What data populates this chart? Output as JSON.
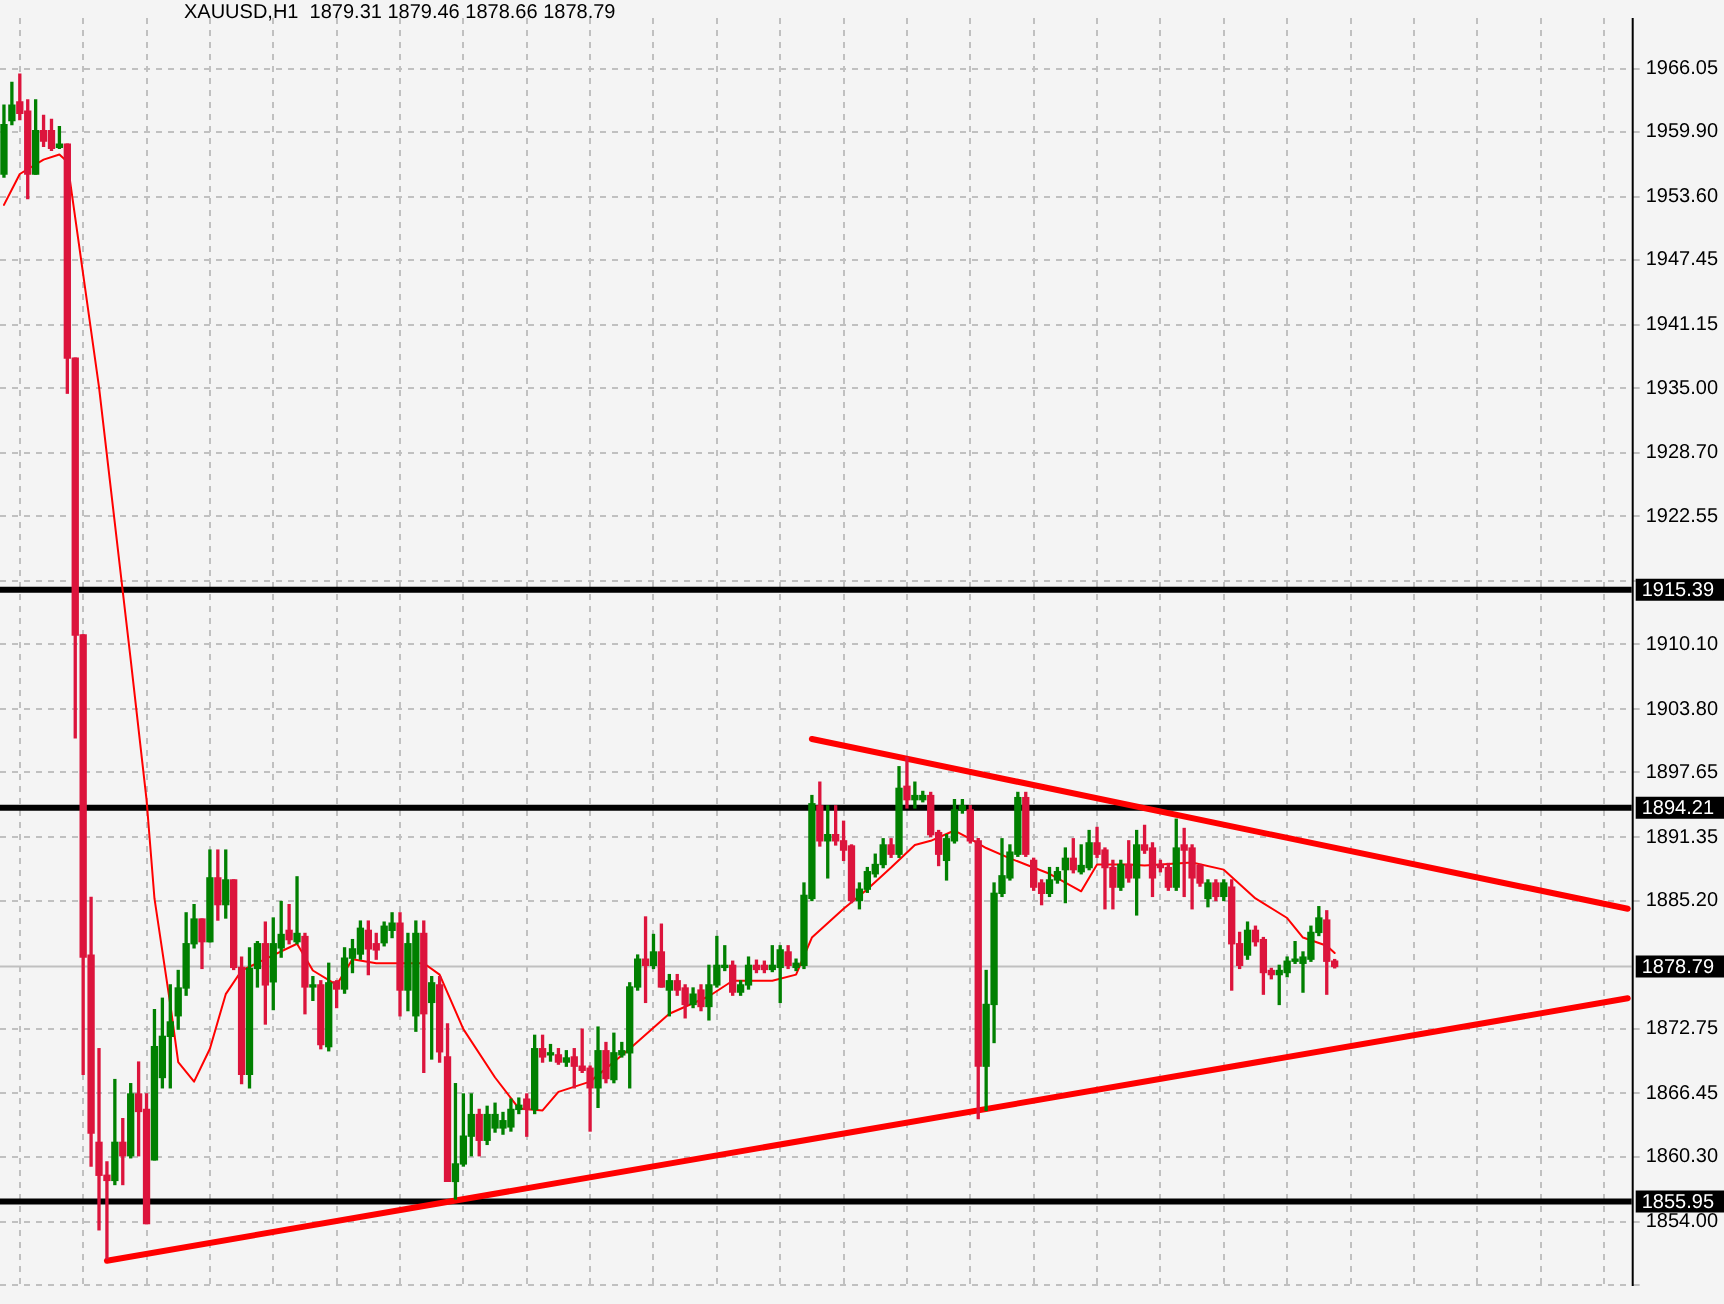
{
  "chart_data": {
    "type": "candlestick",
    "title": "XAUUSD,H1  1879.31 1879.46 1878.66 1878.79",
    "categories": [
      null,
      null,
      null,
      null,
      null,
      null,
      null,
      null,
      null,
      null,
      null,
      null,
      null,
      null,
      null,
      null,
      null,
      null,
      null,
      null,
      null,
      null,
      null,
      null,
      null,
      null,
      null,
      null,
      null,
      null,
      null,
      null,
      null,
      null,
      null,
      null,
      null,
      null,
      null,
      null,
      null,
      null,
      null,
      null,
      null,
      null,
      null,
      null,
      null,
      null,
      null,
      null,
      null,
      null,
      null,
      null,
      null,
      null,
      null,
      null,
      null,
      null,
      null,
      null,
      null,
      null,
      null,
      null,
      null,
      null,
      null,
      null,
      null,
      null,
      null,
      null,
      null,
      null,
      null,
      null,
      null,
      null,
      null,
      null,
      null,
      null,
      null,
      null,
      null,
      null,
      null,
      null,
      null,
      null,
      null,
      null,
      null,
      null,
      null,
      null,
      null,
      null,
      null,
      null,
      null,
      null,
      null,
      null,
      null,
      null,
      null,
      null,
      null,
      null,
      null,
      null,
      null,
      null,
      null,
      null,
      null,
      null,
      null,
      null,
      null,
      null,
      null,
      null,
      null,
      null,
      null,
      null,
      null,
      null,
      null,
      null,
      null,
      null,
      null,
      null,
      null,
      null,
      null,
      null,
      null,
      null,
      null,
      null,
      null,
      null,
      null,
      null,
      null,
      null,
      null,
      null,
      null,
      null,
      null,
      null,
      null,
      null,
      null,
      null,
      null,
      null,
      null,
      null,
      null,
      null,
      null,
      null,
      null,
      null,
      null,
      null,
      null,
      null,
      null,
      null,
      null,
      null,
      null,
      null,
      null,
      null,
      null,
      null,
      null,
      null,
      null,
      null,
      null,
      null,
      null,
      null,
      null,
      null,
      null,
      null,
      null,
      null,
      null,
      null,
      null,
      null
    ],
    "ohlc": [
      [
        1955.8,
        1962.5,
        1955.5,
        1960.6
      ],
      [
        1961.0,
        1964.7,
        1960.6,
        1962.5
      ],
      [
        1962.8,
        1965.5,
        1961.1,
        1961.7
      ],
      [
        1961.9,
        1963.0,
        1953.4,
        1955.8
      ],
      [
        1955.8,
        1963.0,
        1955.8,
        1960.0
      ],
      [
        1960.0,
        1961.5,
        1958.5,
        1959.0
      ],
      [
        1960.0,
        1961.1,
        1958.1,
        1958.3
      ],
      [
        1958.4,
        1960.4,
        1958.3,
        1958.7
      ],
      [
        1958.7,
        1958.7,
        1934.5,
        1937.9
      ],
      [
        1937.9,
        1937.9,
        1901.0,
        1911.0
      ],
      [
        1911.0,
        1911.0,
        1868.3,
        1879.7
      ],
      [
        1879.9,
        1885.5,
        1859.4,
        1862.6
      ],
      [
        1861.7,
        1870.8,
        1853.2,
        1858.5
      ],
      [
        1858.5,
        1859.8,
        1850.4,
        1858.0
      ],
      [
        1858.0,
        1867.8,
        1857.6,
        1861.7
      ],
      [
        1861.7,
        1864.0,
        1857.6,
        1860.4
      ],
      [
        1860.4,
        1867.4,
        1860.2,
        1866.4
      ],
      [
        1866.4,
        1869.5,
        1860.4,
        1864.7
      ],
      [
        1864.9,
        1866.4,
        1853.8,
        1853.8
      ],
      [
        1860.0,
        1874.6,
        1860.0,
        1871.0
      ],
      [
        1868.0,
        1875.7,
        1867.0,
        1872.0
      ],
      [
        1872.0,
        1877.0,
        1867.0,
        1873.4
      ],
      [
        1874.0,
        1878.4,
        1872.7,
        1876.7
      ],
      [
        1876.7,
        1884.0,
        1876.0,
        1881.0
      ],
      [
        1881.0,
        1884.8,
        1880.6,
        1883.4
      ],
      [
        1883.4,
        1883.4,
        1878.6,
        1881.2
      ],
      [
        1881.2,
        1890.1,
        1881.2,
        1887.4
      ],
      [
        1887.4,
        1890.1,
        1883.3,
        1884.8
      ],
      [
        1884.8,
        1890.1,
        1883.5,
        1887.2
      ],
      [
        1887.2,
        1887.2,
        1878.5,
        1878.7
      ],
      [
        1878.7,
        1879.7,
        1867.4,
        1868.3
      ],
      [
        1868.3,
        1880.6,
        1867.0,
        1878.6
      ],
      [
        1878.6,
        1881.2,
        1876.8,
        1881.0
      ],
      [
        1881.0,
        1883.1,
        1873.2,
        1877.0
      ],
      [
        1877.3,
        1883.5,
        1874.6,
        1881.0
      ],
      [
        1880.6,
        1885.1,
        1879.7,
        1881.9
      ],
      [
        1882.3,
        1884.8,
        1881.0,
        1881.4
      ],
      [
        1881.2,
        1887.5,
        1881.0,
        1882.0
      ],
      [
        1881.7,
        1882.0,
        1874.2,
        1876.8
      ],
      [
        1876.8,
        1877.8,
        1875.5,
        1877.0
      ],
      [
        1877.0,
        1877.4,
        1870.8,
        1871.2
      ],
      [
        1871.0,
        1879.1,
        1870.6,
        1877.2
      ],
      [
        1877.3,
        1877.4,
        1874.8,
        1876.6
      ],
      [
        1876.6,
        1880.6,
        1876.2,
        1879.6
      ],
      [
        1879.6,
        1881.4,
        1878.2,
        1880.5
      ],
      [
        1880.0,
        1883.2,
        1879.5,
        1882.5
      ],
      [
        1882.3,
        1883.2,
        1878.0,
        1880.5
      ],
      [
        1881.0,
        1882.0,
        1879.5,
        1880.4
      ],
      [
        1881.1,
        1883.1,
        1880.8,
        1882.7
      ],
      [
        1882.3,
        1884.0,
        1881.6,
        1883.0
      ],
      [
        1883.0,
        1884.0,
        1874.0,
        1876.5
      ],
      [
        1876.5,
        1882.0,
        1874.5,
        1881.0
      ],
      [
        1874.0,
        1883.2,
        1872.5,
        1882.0
      ],
      [
        1882.0,
        1883.2,
        1868.5,
        1874.2
      ],
      [
        1875.3,
        1877.8,
        1869.8,
        1877.2
      ],
      [
        1877.0,
        1877.8,
        1869.5,
        1870.5
      ],
      [
        1870.0,
        1873.2,
        1857.9,
        1857.9
      ],
      [
        1857.9,
        1867.4,
        1856.2,
        1859.6
      ],
      [
        1859.6,
        1866.4,
        1859.4,
        1862.3
      ],
      [
        1862.3,
        1866.4,
        1860.4,
        1864.4
      ],
      [
        1864.4,
        1864.9,
        1860.4,
        1861.9
      ],
      [
        1861.9,
        1865.2,
        1861.5,
        1864.4
      ],
      [
        1863.1,
        1865.5,
        1862.7,
        1864.4
      ],
      [
        1863.1,
        1864.6,
        1862.5,
        1863.8
      ],
      [
        1863.2,
        1865.9,
        1862.8,
        1864.9
      ],
      [
        1864.9,
        1866.0,
        1864.5,
        1865.3
      ],
      [
        1865.9,
        1866.4,
        1862.3,
        1864.9
      ],
      [
        1864.9,
        1872.1,
        1864.5,
        1870.8
      ],
      [
        1870.8,
        1872.1,
        1869.5,
        1870.0
      ],
      [
        1870.2,
        1871.2,
        1869.6,
        1870.4
      ],
      [
        1870.2,
        1870.8,
        1869.3,
        1869.5
      ],
      [
        1869.5,
        1870.6,
        1869.1,
        1869.9
      ],
      [
        1870.0,
        1870.8,
        1867.0,
        1869.1
      ],
      [
        1869.1,
        1872.7,
        1868.5,
        1868.7
      ],
      [
        1868.9,
        1869.1,
        1862.8,
        1867.0
      ],
      [
        1867.0,
        1872.9,
        1865.1,
        1870.6
      ],
      [
        1870.6,
        1871.4,
        1867.5,
        1867.9
      ],
      [
        1867.8,
        1872.3,
        1867.5,
        1870.4
      ],
      [
        1870.2,
        1871.4,
        1870.0,
        1870.6
      ],
      [
        1870.4,
        1877.2,
        1867.0,
        1876.8
      ],
      [
        1876.8,
        1879.9,
        1876.5,
        1879.5
      ],
      [
        1879.5,
        1883.6,
        1875.3,
        1878.9
      ],
      [
        1878.9,
        1881.9,
        1878.6,
        1880.2
      ],
      [
        1880.2,
        1882.9,
        1876.8,
        1876.8
      ],
      [
        1876.5,
        1878.0,
        1874.0,
        1877.4
      ],
      [
        1877.4,
        1878.0,
        1876.0,
        1876.5
      ],
      [
        1876.7,
        1877.0,
        1873.8,
        1875.1
      ],
      [
        1875.1,
        1876.7,
        1874.8,
        1876.1
      ],
      [
        1876.5,
        1877.0,
        1874.5,
        1874.9
      ],
      [
        1874.9,
        1878.9,
        1873.6,
        1877.0
      ],
      [
        1877.0,
        1881.7,
        1876.8,
        1878.9
      ],
      [
        1878.7,
        1880.8,
        1878.4,
        1878.9
      ],
      [
        1878.9,
        1879.3,
        1876.0,
        1876.3
      ],
      [
        1876.3,
        1877.4,
        1876.0,
        1877.0
      ],
      [
        1877.0,
        1879.7,
        1876.6,
        1878.9
      ],
      [
        1878.9,
        1879.4,
        1878.2,
        1878.5
      ],
      [
        1878.9,
        1879.3,
        1878.2,
        1878.5
      ],
      [
        1878.5,
        1880.8,
        1878.3,
        1878.9
      ],
      [
        1878.7,
        1880.8,
        1875.3,
        1880.4
      ],
      [
        1880.2,
        1880.8,
        1878.6,
        1878.9
      ],
      [
        1878.7,
        1879.5,
        1878.4,
        1879.1
      ],
      [
        1878.9,
        1886.9,
        1878.6,
        1885.7
      ],
      [
        1885.4,
        1895.4,
        1885.2,
        1894.6
      ],
      [
        1894.4,
        1896.7,
        1890.5,
        1891.0
      ],
      [
        1891.0,
        1894.4,
        1887.4,
        1891.6
      ],
      [
        1891.6,
        1894.4,
        1890.6,
        1891.0
      ],
      [
        1891.0,
        1892.9,
        1889.1,
        1890.1
      ],
      [
        1890.5,
        1890.6,
        1885.0,
        1885.2
      ],
      [
        1885.2,
        1886.9,
        1884.4,
        1886.3
      ],
      [
        1886.3,
        1888.4,
        1886.0,
        1888.0
      ],
      [
        1887.8,
        1889.7,
        1887.5,
        1888.7
      ],
      [
        1888.7,
        1891.2,
        1888.4,
        1890.6
      ],
      [
        1890.6,
        1891.2,
        1889.4,
        1889.7
      ],
      [
        1889.7,
        1898.2,
        1889.4,
        1896.1
      ],
      [
        1896.3,
        1899.1,
        1894.2,
        1895.0
      ],
      [
        1895.0,
        1896.7,
        1894.2,
        1895.4
      ],
      [
        1895.0,
        1895.8,
        1894.8,
        1895.4
      ],
      [
        1895.4,
        1895.7,
        1891.4,
        1891.6
      ],
      [
        1891.8,
        1892.0,
        1888.6,
        1889.7
      ],
      [
        1889.1,
        1891.6,
        1887.2,
        1891.2
      ],
      [
        1891.0,
        1895.0,
        1890.8,
        1894.0
      ],
      [
        1894.0,
        1895.0,
        1893.7,
        1894.4
      ],
      [
        1894.0,
        1894.4,
        1890.8,
        1891.0
      ],
      [
        1891.0,
        1891.2,
        1864.0,
        1869.1
      ],
      [
        1869.1,
        1878.4,
        1864.8,
        1875.1
      ],
      [
        1875.1,
        1886.9,
        1871.4,
        1885.9
      ],
      [
        1885.9,
        1891.2,
        1885.6,
        1887.6
      ],
      [
        1887.4,
        1890.6,
        1887.2,
        1889.9
      ],
      [
        1889.7,
        1895.7,
        1889.5,
        1895.2
      ],
      [
        1895.2,
        1895.7,
        1889.5,
        1889.7
      ],
      [
        1889.1,
        1889.3,
        1886.2,
        1886.5
      ],
      [
        1886.9,
        1887.2,
        1884.8,
        1885.9
      ],
      [
        1885.9,
        1888.4,
        1885.6,
        1887.2
      ],
      [
        1887.2,
        1888.4,
        1886.9,
        1888.0
      ],
      [
        1888.2,
        1890.3,
        1885.0,
        1889.3
      ],
      [
        1889.3,
        1891.2,
        1887.9,
        1888.2
      ],
      [
        1888.0,
        1890.6,
        1887.8,
        1888.6
      ],
      [
        1888.4,
        1892.0,
        1888.2,
        1890.8
      ],
      [
        1890.8,
        1892.3,
        1889.4,
        1889.7
      ],
      [
        1890.1,
        1890.3,
        1884.4,
        1888.4
      ],
      [
        1888.4,
        1889.1,
        1884.4,
        1886.5
      ],
      [
        1886.5,
        1889.1,
        1886.2,
        1888.7
      ],
      [
        1888.7,
        1891.0,
        1887.0,
        1887.4
      ],
      [
        1887.4,
        1892.0,
        1883.8,
        1890.6
      ],
      [
        1890.6,
        1892.5,
        1889.8,
        1890.1
      ],
      [
        1890.3,
        1890.8,
        1885.6,
        1887.4
      ],
      [
        1888.7,
        1889.1,
        1888.0,
        1888.4
      ],
      [
        1888.4,
        1888.8,
        1886.2,
        1886.5
      ],
      [
        1886.5,
        1893.1,
        1886.2,
        1890.3
      ],
      [
        1890.6,
        1892.2,
        1885.6,
        1890.1
      ],
      [
        1890.3,
        1890.6,
        1884.4,
        1887.4
      ],
      [
        1888.6,
        1888.7,
        1886.6,
        1886.9
      ],
      [
        1885.4,
        1887.2,
        1884.6,
        1886.9
      ],
      [
        1886.9,
        1887.2,
        1885.2,
        1885.6
      ],
      [
        1885.6,
        1887.2,
        1885.2,
        1886.9
      ],
      [
        1886.5,
        1887.2,
        1876.5,
        1881.0
      ],
      [
        1881.0,
        1882.1,
        1878.6,
        1878.9
      ],
      [
        1879.9,
        1883.1,
        1879.5,
        1882.3
      ],
      [
        1882.3,
        1882.7,
        1880.8,
        1881.2
      ],
      [
        1881.4,
        1881.6,
        1876.1,
        1878.2
      ],
      [
        1878.4,
        1878.6,
        1877.6,
        1878.0
      ],
      [
        1878.0,
        1878.9,
        1875.1,
        1878.4
      ],
      [
        1878.2,
        1879.7,
        1877.8,
        1879.3
      ],
      [
        1879.3,
        1881.2,
        1879.1,
        1879.5
      ],
      [
        1879.1,
        1880.2,
        1876.3,
        1879.7
      ],
      [
        1879.5,
        1882.7,
        1879.3,
        1882.1
      ],
      [
        1882.1,
        1884.6,
        1881.8,
        1883.5
      ],
      [
        1883.3,
        1884.2,
        1876.1,
        1879.3
      ],
      [
        1879.31,
        1879.46,
        1878.66,
        1878.79
      ],
      null,
      null,
      null,
      null,
      null,
      null,
      null,
      null,
      null,
      null,
      null,
      null,
      null,
      null,
      null,
      null,
      null,
      null,
      null,
      null,
      null,
      null,
      null,
      null,
      null,
      null,
      null,
      null,
      null,
      null,
      null,
      null,
      null,
      null,
      null,
      null,
      null
    ],
    "colors": [
      "#008000",
      "#008000",
      "#dc143c",
      "#dc143c",
      "#008000",
      "#dc143c",
      "#dc143c",
      "#008000",
      "#dc143c",
      "#dc143c",
      "#dc143c",
      "#dc143c",
      "#dc143c",
      "#dc143c",
      "#008000",
      "#dc143c",
      "#008000",
      "#dc143c",
      "#dc143c",
      "#008000",
      "#008000",
      "#008000",
      "#008000",
      "#008000",
      "#008000",
      "#dc143c",
      "#008000",
      "#dc143c",
      "#008000",
      "#dc143c",
      "#dc143c",
      "#008000",
      "#008000",
      "#dc143c",
      "#008000",
      "#008000",
      "#dc143c",
      "#008000",
      "#dc143c",
      "#008000",
      "#dc143c",
      "#008000",
      "#dc143c",
      "#008000",
      "#008000",
      "#008000",
      "#dc143c",
      "#dc143c",
      "#008000",
      "#008000",
      "#dc143c",
      "#008000",
      "#008000",
      "#dc143c",
      "#008000",
      "#dc143c",
      "#dc143c",
      "#008000",
      "#008000",
      "#008000",
      "#dc143c",
      "#008000",
      "#008000",
      "#008000",
      "#008000",
      "#008000",
      "#dc143c",
      "#008000",
      "#dc143c",
      "#008000",
      "#dc143c",
      "#008000",
      "#dc143c",
      "#dc143c",
      "#dc143c",
      "#008000",
      "#dc143c",
      "#008000",
      "#008000",
      "#008000",
      "#008000",
      "#dc143c",
      "#008000",
      "#dc143c",
      "#008000",
      "#dc143c",
      "#dc143c",
      "#008000",
      "#dc143c",
      "#008000",
      "#008000",
      "#008000",
      "#dc143c",
      "#008000",
      "#008000",
      "#dc143c",
      "#dc143c",
      "#008000",
      "#008000",
      "#dc143c",
      "#008000",
      "#008000",
      "#008000",
      "#dc143c",
      "#008000",
      "#dc143c",
      "#dc143c",
      "#dc143c",
      "#008000",
      "#008000",
      "#008000",
      "#008000",
      "#dc143c",
      "#008000",
      "#dc143c",
      "#008000",
      "#008000",
      "#dc143c",
      "#dc143c",
      "#008000",
      "#008000",
      "#008000",
      "#dc143c",
      "#dc143c",
      "#008000",
      "#008000",
      "#008000",
      "#008000",
      "#008000",
      "#dc143c",
      "#dc143c",
      "#dc143c",
      "#008000",
      "#008000",
      "#008000",
      "#dc143c",
      "#008000",
      "#008000",
      "#dc143c",
      "#dc143c",
      "#dc143c",
      "#008000",
      "#dc143c",
      "#008000",
      "#dc143c",
      "#dc143c",
      "#dc143c",
      "#dc143c",
      "#008000",
      "#dc143c",
      "#dc143c",
      "#dc143c",
      "#008000",
      "#dc143c",
      "#008000",
      "#dc143c",
      "#dc143c",
      "#008000",
      "#dc143c",
      "#dc143c",
      "#dc143c",
      "#008000",
      "#008000",
      "#008000",
      "#008000",
      "#008000",
      "#008000",
      "#dc143c",
      "#dc143c",
      null,
      null,
      null,
      null,
      null,
      null,
      null,
      null,
      null,
      null,
      null,
      null,
      null,
      null,
      null,
      null,
      null,
      null,
      null,
      null,
      null,
      null,
      null,
      null,
      null,
      null,
      null,
      null,
      null,
      null,
      null,
      null,
      null,
      null,
      null,
      null,
      null
    ],
    "series": [
      {
        "type": "line",
        "color": "#ff0000",
        "values": [
          1952.8,
          null,
          1955.8,
          null,
          null,
          1957.2,
          null,
          1957.7,
          1957.0,
          null,
          null,
          null,
          1935.1,
          null,
          null,
          null,
          1908.6,
          null,
          1895.0,
          1885.4,
          null,
          1875.1,
          1869.5,
          null,
          1867.6,
          null,
          1870.8,
          null,
          1876.1,
          null,
          1878.4,
          null,
          null,
          null,
          null,
          null,
          null,
          1881.0,
          null,
          1878.4,
          null,
          null,
          1877.0,
          null,
          1879.5,
          null,
          null,
          1879.1,
          null,
          null,
          null,
          null,
          null,
          1879.1,
          null,
          1878.0,
          null,
          null,
          1872.7,
          null,
          null,
          null,
          1868.0,
          null,
          null,
          1865.0,
          null,
          null,
          1864.8,
          null,
          1866.6,
          null,
          null,
          null,
          1867.6,
          null,
          null,
          null,
          null,
          1870.8,
          null,
          null,
          null,
          null,
          1874.2,
          null,
          null,
          null,
          null,
          1875.9,
          null,
          null,
          1877.4,
          null,
          null,
          null,
          null,
          1877.4,
          null,
          null,
          1878.0,
          null,
          1881.6,
          null,
          null,
          null,
          1884.4,
          null,
          null,
          1886.3,
          null,
          null,
          1888.4,
          null,
          null,
          1890.6,
          null,
          1891.0,
          null,
          null,
          1892.0,
          null,
          1891.2,
          null,
          1890.3,
          null,
          null,
          1889.3,
          null,
          1888.7,
          null,
          null,
          1887.8,
          null,
          null,
          null,
          1886.1,
          null,
          1888.7,
          null,
          null,
          null,
          1888.7,
          null,
          1888.6,
          null,
          null,
          null,
          null,
          null,
          1888.9,
          null,
          null,
          null,
          1888.2,
          null,
          null,
          null,
          1885.4,
          null,
          null,
          null,
          1883.5,
          null,
          1881.6,
          null,
          null,
          1880.8,
          1880.1,
          null,
          null,
          null,
          null,
          null,
          null,
          null,
          null,
          null,
          null,
          null,
          null,
          null,
          null,
          null,
          null,
          null,
          null,
          null,
          null,
          null,
          null,
          null,
          null,
          null,
          null,
          null,
          null,
          null,
          null,
          null,
          null,
          null,
          null,
          null,
          null,
          null
        ]
      },
      {
        "type": "line",
        "color": "#ff0000",
        "values": [
          null,
          null,
          null,
          null,
          null,
          null,
          null,
          null,
          null,
          null,
          null,
          null,
          null,
          1850.2,
          null,
          null,
          null,
          null,
          null,
          null,
          null,
          null,
          null,
          null,
          null,
          null,
          null,
          null,
          null,
          null,
          null,
          null,
          null,
          null,
          null,
          null,
          null,
          null,
          null,
          null,
          null,
          null,
          null,
          null,
          null,
          null,
          null,
          null,
          null,
          null,
          null,
          null,
          null,
          null,
          null,
          null,
          null,
          null,
          null,
          null,
          null,
          null,
          null,
          null,
          null,
          null,
          null,
          null,
          null,
          null,
          null,
          null,
          null,
          null,
          null,
          null,
          null,
          null,
          null,
          null,
          null,
          null,
          null,
          null,
          null,
          null,
          null,
          null,
          null,
          null,
          null,
          null,
          null,
          null,
          null,
          null,
          null,
          null,
          null,
          null,
          null,
          null,
          null,
          null,
          null,
          null,
          null,
          null,
          null,
          null,
          null,
          null,
          null,
          null,
          null,
          null,
          null,
          null,
          null,
          null,
          null,
          null,
          null,
          null,
          null,
          null,
          null,
          null,
          null,
          null,
          null,
          null,
          null,
          null,
          null,
          null,
          null,
          null,
          null,
          null,
          null,
          null,
          null,
          null,
          null,
          null,
          null,
          null,
          null,
          null,
          null,
          null,
          null,
          null,
          null,
          null,
          null,
          null,
          null,
          null,
          null,
          null,
          null,
          null,
          null,
          null,
          null,
          null,
          null,
          null,
          null,
          null,
          null,
          null,
          null,
          null,
          null,
          null,
          null,
          null,
          null,
          null,
          null,
          null,
          null,
          null,
          null,
          null,
          null,
          null,
          null,
          null,
          null,
          null,
          null,
          null,
          null,
          null,
          null,
          null,
          null,
          null,
          null,
          null,
          null,
          1875.7
        ]
      },
      {
        "type": "line",
        "color": "#ff0000",
        "values": [
          null,
          null,
          null,
          null,
          null,
          null,
          null,
          null,
          null,
          null,
          null,
          null,
          null,
          null,
          null,
          null,
          null,
          null,
          null,
          null,
          null,
          null,
          null,
          null,
          null,
          null,
          null,
          null,
          null,
          null,
          null,
          null,
          null,
          null,
          null,
          null,
          null,
          null,
          null,
          null,
          null,
          null,
          null,
          null,
          null,
          null,
          null,
          null,
          null,
          null,
          null,
          null,
          null,
          null,
          null,
          null,
          null,
          null,
          null,
          null,
          null,
          null,
          null,
          null,
          null,
          null,
          null,
          null,
          null,
          null,
          null,
          null,
          null,
          null,
          null,
          null,
          null,
          null,
          null,
          null,
          null,
          null,
          null,
          null,
          null,
          null,
          null,
          null,
          null,
          null,
          null,
          null,
          null,
          null,
          null,
          null,
          null,
          null,
          null,
          null,
          null,
          null,
          1900.9,
          null,
          null,
          null,
          null,
          null,
          null,
          null,
          null,
          null,
          null,
          null,
          null,
          null,
          null,
          null,
          null,
          null,
          null,
          null,
          null,
          null,
          null,
          null,
          null,
          null,
          null,
          null,
          null,
          null,
          null,
          null,
          null,
          null,
          null,
          null,
          null,
          null,
          null,
          null,
          null,
          null,
          null,
          null,
          null,
          null,
          null,
          null,
          null,
          null,
          null,
          null,
          null,
          null,
          null,
          null,
          null,
          null,
          null,
          null,
          null,
          null,
          null,
          null,
          null,
          null,
          null,
          null,
          null,
          null,
          null,
          null,
          null,
          null,
          null,
          null,
          null,
          null,
          null,
          null,
          null,
          null,
          null,
          null,
          null,
          null,
          null,
          null,
          null,
          null,
          null,
          null,
          null,
          null,
          null,
          null,
          null,
          null,
          null,
          null,
          null,
          null,
          null,
          1884.4
        ]
      }
    ],
    "ref_lines": [
      {
        "axis": "y",
        "value": 1915.39,
        "label": "1915.39",
        "color": "#000000"
      },
      {
        "axis": "y",
        "value": 1894.21,
        "label": "1894.21",
        "color": "#000000"
      },
      {
        "axis": "y",
        "value": 1855.95,
        "label": "1855.95",
        "color": "#000000"
      },
      {
        "axis": "y",
        "value": 1878.79,
        "label": "1878.79",
        "color": "#c0c0c0"
      }
    ],
    "ylim": [
      1847.74,
      1970.96
    ],
    "yticks": [
      {
        "value": 1966.05,
        "label": "1966.05"
      },
      {
        "value": 1959.9,
        "label": "1959.90"
      },
      {
        "value": 1953.6,
        "label": "1953.60"
      },
      {
        "value": 1947.45,
        "label": "1947.45"
      },
      {
        "value": 1941.15,
        "label": "1941.15"
      },
      {
        "value": 1935,
        "label": "1935.00"
      },
      {
        "value": 1928.7,
        "label": "1928.70"
      },
      {
        "value": 1922.55,
        "label": "1922.55"
      },
      {
        "value": 1916.25,
        "label": null
      },
      {
        "value": 1910.1,
        "label": "1910.10"
      },
      {
        "value": 1903.8,
        "label": "1903.80"
      },
      {
        "value": 1897.65,
        "label": "1897.65"
      },
      {
        "value": 1891.35,
        "label": "1891.35"
      },
      {
        "value": 1885.2,
        "label": "1885.20"
      },
      {
        "value": 1872.75,
        "label": "1872.75"
      },
      {
        "value": 1866.45,
        "label": "1866.45"
      },
      {
        "value": 1860.3,
        "label": "1860.30"
      },
      {
        "value": 1854,
        "label": "1854.00"
      },
      {
        "value": 1847.85,
        "label": null
      }
    ],
    "grid": true,
    "tick_labels": "y"
  }
}
